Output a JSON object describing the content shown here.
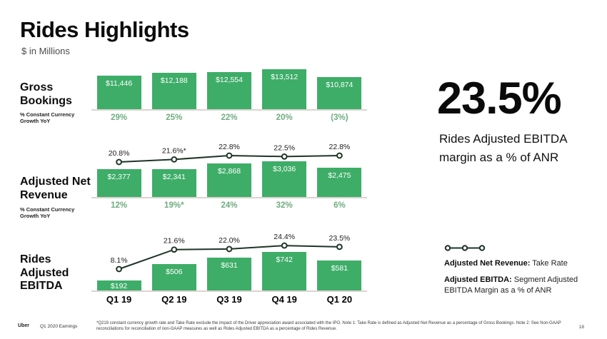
{
  "slide": {
    "title": "Rides Highlights",
    "subtitle": "$ in Millions",
    "page_number": "18",
    "footer": {
      "brand": "Uber",
      "label": "Q1 2020 Earnings",
      "footnote": "*Q219 constant currency growth rate and Take Rate exclude the impact of the Driver appreciation award associated with the IPO. Note 1: Take Rate is defined as Adjusted Net Revenue as a percentage of Gross Bookings. Note 2: See Non-GAAP reconciliations for reconciliation of non-GAAP measures as well as Rides Adjusted EBITDA as a percentage of Rides Revenue."
    }
  },
  "highlight": {
    "value": "23.5%",
    "description": "Rides Adjusted EBITDA margin as a % of ANR"
  },
  "legend": {
    "items": [
      {
        "term": "Adjusted Net Revenue:",
        "definition": " Take Rate"
      },
      {
        "term": "Adjusted EBITDA:",
        "definition": " Segment Adjusted EBITDA Margin as a % of ANR"
      }
    ]
  },
  "colors": {
    "bar": "#3EAD68",
    "growth_text": "#6FAC80",
    "line": "#1F3527",
    "baseline": "#DCD3D0"
  },
  "chart_data": [
    {
      "type": "bar",
      "name": "Gross Bookings",
      "sublabel": "% Constant Currency Growth YoY",
      "categories": [
        "Q1 19",
        "Q2 19",
        "Q3 19",
        "Q4 19",
        "Q1 20"
      ],
      "values": [
        11446,
        12188,
        12554,
        13512,
        10874
      ],
      "value_labels": [
        "$11,446",
        "$12,188",
        "$12,554",
        "$13,512",
        "$10,874"
      ],
      "growth_labels": [
        "29%",
        "25%",
        "22%",
        "20%",
        "(3%)"
      ],
      "ylabel": "Gross Bookings ($M)"
    },
    {
      "type": "bar",
      "name": "Adjusted Net Revenue",
      "sublabel": "% Constant Currency Growth YoY",
      "categories": [
        "Q1 19",
        "Q2 19",
        "Q3 19",
        "Q4 19",
        "Q1 20"
      ],
      "values": [
        2377,
        2341,
        2868,
        3036,
        2475
      ],
      "value_labels": [
        "$2,377",
        "$2,341",
        "$2,868",
        "$3,036",
        "$2,475"
      ],
      "growth_labels": [
        "12%",
        "19%*",
        "24%",
        "32%",
        "6%"
      ],
      "ylabel": "Adjusted Net Revenue ($M)",
      "line": {
        "name": "Take Rate",
        "values": [
          20.8,
          21.6,
          22.8,
          22.5,
          22.8
        ],
        "labels": [
          "20.8%",
          "21.6%*",
          "22.8%",
          "22.5%",
          "22.8%"
        ]
      }
    },
    {
      "type": "bar",
      "name": "Rides Adjusted EBITDA",
      "sublabel": "",
      "categories": [
        "Q1 19",
        "Q2 19",
        "Q3 19",
        "Q4 19",
        "Q1 20"
      ],
      "values": [
        192,
        506,
        631,
        742,
        581
      ],
      "value_labels": [
        "$192",
        "$506",
        "$631",
        "$742",
        "$581"
      ],
      "growth_labels": [],
      "ylabel": "Rides Adjusted EBITDA ($M)",
      "line": {
        "name": "Segment Adjusted EBITDA Margin as a % of ANR",
        "values": [
          8.1,
          21.6,
          22.0,
          24.4,
          23.5
        ],
        "labels": [
          "8.1%",
          "21.6%",
          "22.0%",
          "24.4%",
          "23.5%"
        ]
      }
    }
  ]
}
